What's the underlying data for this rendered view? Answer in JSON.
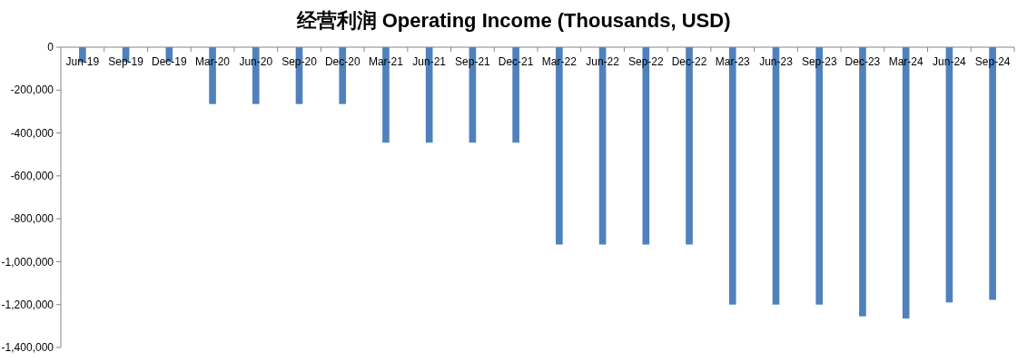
{
  "chart_data": {
    "type": "bar",
    "title": "经营利润 Operating Income (Thousands, USD)",
    "categories": [
      "Jun-19",
      "Sep-19",
      "Dec-19",
      "Mar-20",
      "Jun-20",
      "Sep-20",
      "Dec-20",
      "Mar-21",
      "Jun-21",
      "Sep-21",
      "Dec-21",
      "Mar-22",
      "Jun-22",
      "Sep-22",
      "Dec-22",
      "Mar-23",
      "Jun-23",
      "Sep-23",
      "Dec-23",
      "Mar-24",
      "Jun-24",
      "Sep-24"
    ],
    "values": [
      -70000,
      -70000,
      -70000,
      -265000,
      -265000,
      -265000,
      -265000,
      -445000,
      -445000,
      -445000,
      -445000,
      -920000,
      -920000,
      -920000,
      -920000,
      -1200000,
      -1200000,
      -1200000,
      -1255000,
      -1265000,
      -1190000,
      -1178000
    ],
    "color": "#4f81bd",
    "ylim": [
      -1400000,
      0
    ],
    "yticks": [
      {
        "value": -1400000,
        "label": "-1,400,000"
      },
      {
        "value": -1200000,
        "label": "-1,200,000"
      },
      {
        "value": -1000000,
        "label": "-1,000,000"
      },
      {
        "value": -800000,
        "label": "-800,000"
      },
      {
        "value": -600000,
        "label": "-600,000"
      },
      {
        "value": -400000,
        "label": "-400,000"
      },
      {
        "value": -200000,
        "label": "-200,000"
      },
      0
    ],
    "grid": false
  }
}
